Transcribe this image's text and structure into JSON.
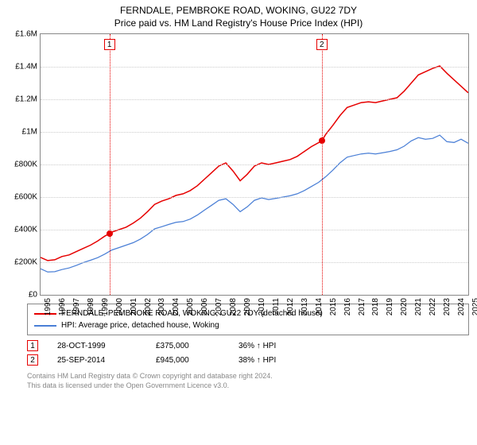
{
  "title": "FERNDALE, PEMBROKE ROAD, WOKING, GU22 7DY",
  "subtitle": "Price paid vs. HM Land Registry's House Price Index (HPI)",
  "chart": {
    "type": "line",
    "background_color": "#ffffff",
    "grid_color": "#cccccc",
    "axis_color": "#888888",
    "y": {
      "min": 0,
      "max": 1600000,
      "tick_step": 200000,
      "tick_prefix": "£",
      "format": "M_or_K"
    },
    "x": {
      "min": 1995,
      "max": 2025,
      "tick_step": 1,
      "rotate": -90
    },
    "series": [
      {
        "name": "ferndale",
        "label": "FERNDALE, PEMBROKE ROAD, WOKING, GU22 7DY (detached house)",
        "color": "#e60000",
        "line_width": 1.5,
        "data": [
          [
            1995,
            230000
          ],
          [
            1995.5,
            210000
          ],
          [
            1996,
            215000
          ],
          [
            1996.5,
            235000
          ],
          [
            1997,
            245000
          ],
          [
            1997.5,
            265000
          ],
          [
            1998,
            285000
          ],
          [
            1998.5,
            305000
          ],
          [
            1999,
            330000
          ],
          [
            1999.5,
            360000
          ],
          [
            1999.83,
            375000
          ],
          [
            2000,
            385000
          ],
          [
            2000.5,
            400000
          ],
          [
            2001,
            415000
          ],
          [
            2001.5,
            440000
          ],
          [
            2002,
            470000
          ],
          [
            2002.5,
            510000
          ],
          [
            2003,
            555000
          ],
          [
            2003.5,
            575000
          ],
          [
            2004,
            590000
          ],
          [
            2004.5,
            610000
          ],
          [
            2005,
            620000
          ],
          [
            2005.5,
            640000
          ],
          [
            2006,
            670000
          ],
          [
            2006.5,
            710000
          ],
          [
            2007,
            750000
          ],
          [
            2007.5,
            790000
          ],
          [
            2008,
            810000
          ],
          [
            2008.5,
            760000
          ],
          [
            2009,
            700000
          ],
          [
            2009.5,
            740000
          ],
          [
            2010,
            790000
          ],
          [
            2010.5,
            810000
          ],
          [
            2011,
            800000
          ],
          [
            2011.5,
            810000
          ],
          [
            2012,
            820000
          ],
          [
            2012.5,
            830000
          ],
          [
            2013,
            850000
          ],
          [
            2013.5,
            880000
          ],
          [
            2014,
            910000
          ],
          [
            2014.73,
            945000
          ],
          [
            2015,
            985000
          ],
          [
            2015.5,
            1040000
          ],
          [
            2016,
            1100000
          ],
          [
            2016.5,
            1150000
          ],
          [
            2017,
            1165000
          ],
          [
            2017.5,
            1180000
          ],
          [
            2018,
            1185000
          ],
          [
            2018.5,
            1180000
          ],
          [
            2019,
            1190000
          ],
          [
            2019.5,
            1200000
          ],
          [
            2020,
            1210000
          ],
          [
            2020.5,
            1250000
          ],
          [
            2021,
            1300000
          ],
          [
            2021.5,
            1350000
          ],
          [
            2022,
            1370000
          ],
          [
            2022.5,
            1390000
          ],
          [
            2023,
            1405000
          ],
          [
            2023.5,
            1360000
          ],
          [
            2024,
            1320000
          ],
          [
            2024.5,
            1280000
          ],
          [
            2025,
            1240000
          ]
        ]
      },
      {
        "name": "hpi",
        "label": "HPI: Average price, detached house, Woking",
        "color": "#4a7fd6",
        "line_width": 1.25,
        "data": [
          [
            1995,
            160000
          ],
          [
            1995.5,
            140000
          ],
          [
            1996,
            142000
          ],
          [
            1996.5,
            155000
          ],
          [
            1997,
            165000
          ],
          [
            1997.5,
            180000
          ],
          [
            1998,
            198000
          ],
          [
            1998.5,
            212000
          ],
          [
            1999,
            228000
          ],
          [
            1999.5,
            250000
          ],
          [
            2000,
            275000
          ],
          [
            2000.5,
            290000
          ],
          [
            2001,
            305000
          ],
          [
            2001.5,
            320000
          ],
          [
            2002,
            342000
          ],
          [
            2002.5,
            370000
          ],
          [
            2003,
            405000
          ],
          [
            2003.5,
            418000
          ],
          [
            2004,
            432000
          ],
          [
            2004.5,
            445000
          ],
          [
            2005,
            450000
          ],
          [
            2005.5,
            465000
          ],
          [
            2006,
            490000
          ],
          [
            2006.5,
            520000
          ],
          [
            2007,
            550000
          ],
          [
            2007.5,
            580000
          ],
          [
            2008,
            590000
          ],
          [
            2008.5,
            555000
          ],
          [
            2009,
            510000
          ],
          [
            2009.5,
            540000
          ],
          [
            2010,
            580000
          ],
          [
            2010.5,
            595000
          ],
          [
            2011,
            585000
          ],
          [
            2011.5,
            592000
          ],
          [
            2012,
            600000
          ],
          [
            2012.5,
            608000
          ],
          [
            2013,
            620000
          ],
          [
            2013.5,
            640000
          ],
          [
            2014,
            665000
          ],
          [
            2014.5,
            690000
          ],
          [
            2015,
            725000
          ],
          [
            2015.5,
            765000
          ],
          [
            2016,
            810000
          ],
          [
            2016.5,
            845000
          ],
          [
            2017,
            855000
          ],
          [
            2017.5,
            865000
          ],
          [
            2018,
            870000
          ],
          [
            2018.5,
            865000
          ],
          [
            2019,
            872000
          ],
          [
            2019.5,
            880000
          ],
          [
            2020,
            890000
          ],
          [
            2020.5,
            912000
          ],
          [
            2021,
            945000
          ],
          [
            2021.5,
            965000
          ],
          [
            2022,
            955000
          ],
          [
            2022.5,
            960000
          ],
          [
            2023,
            980000
          ],
          [
            2023.5,
            940000
          ],
          [
            2024,
            935000
          ],
          [
            2024.5,
            955000
          ],
          [
            2025,
            930000
          ]
        ]
      }
    ],
    "events": [
      {
        "id": "1",
        "x": 1999.83,
        "color": "#e60000"
      },
      {
        "id": "2",
        "x": 2014.73,
        "color": "#e60000"
      }
    ],
    "sale_points": [
      {
        "x": 1999.83,
        "y": 375000,
        "color": "#e60000"
      },
      {
        "x": 2014.73,
        "y": 945000,
        "color": "#e60000"
      }
    ]
  },
  "legend": {
    "items": [
      {
        "color": "#e60000",
        "label": "FERNDALE, PEMBROKE ROAD, WOKING, GU22 7DY (detached house)"
      },
      {
        "color": "#4a7fd6",
        "label": "HPI: Average price, detached house, Woking"
      }
    ]
  },
  "sales": [
    {
      "id": "1",
      "color": "#e60000",
      "date": "28-OCT-1999",
      "price": "£375,000",
      "hpi_delta": "36% ↑ HPI"
    },
    {
      "id": "2",
      "color": "#e60000",
      "date": "25-SEP-2014",
      "price": "£945,000",
      "hpi_delta": "38% ↑ HPI"
    }
  ],
  "footnote": {
    "line1": "Contains HM Land Registry data © Crown copyright and database right 2024.",
    "line2": "This data is licensed under the Open Government Licence v3.0."
  }
}
